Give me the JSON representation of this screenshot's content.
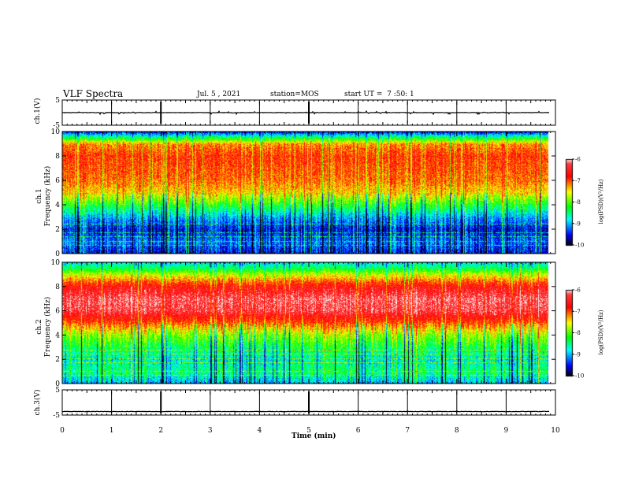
{
  "header": {
    "title": "VLF Spectra",
    "date": "Jul. 5 , 2021",
    "station": "station=MOS",
    "start_ut": "start UT =  7 :50: 1"
  },
  "panels": {
    "ch1_wave_label": "ch.1(V)",
    "ch1_spec_label": "ch.1\nFrequency (kHz)",
    "ch2_spec_label": "ch.2\nFrequency (kHz)",
    "ch3_wave_label": "ch.3(V)",
    "colorbar_label": "log(PSD)(V²/Hz)"
  },
  "chart_data": [
    {
      "type": "line",
      "name_label": "ch.1(V)",
      "ylim": [
        -5,
        5
      ],
      "y_ticks": [
        "5",
        "-5"
      ],
      "level": 0,
      "xlim": [
        0,
        10
      ]
    },
    {
      "type": "heatmap",
      "ylabel": "Frequency (kHz)",
      "channel": "ch.1",
      "ylim": [
        0,
        10
      ],
      "y_ticks": [
        "0",
        "2",
        "4",
        "6",
        "8",
        "10"
      ],
      "xlim": [
        0,
        10
      ],
      "data_end_min": 9.85,
      "colorbar": {
        "range": [
          -10,
          -6
        ],
        "ticks": [
          "-6",
          "-7",
          "-8",
          "-9",
          "-10"
        ],
        "label": "log(PSD)(V²/Hz)"
      },
      "profile_freq_khz": [
        0,
        1,
        2,
        3,
        4,
        5,
        6,
        7,
        8,
        9,
        9.5,
        10
      ],
      "profile_log_psd": [
        -9.5,
        -9.2,
        -9.5,
        -9.0,
        -8.2,
        -7.4,
        -7.1,
        -7.0,
        -6.9,
        -7.2,
        -8.3,
        -9.5
      ]
    },
    {
      "type": "heatmap",
      "ylabel": "Frequency (kHz)",
      "channel": "ch.2",
      "ylim": [
        0,
        10
      ],
      "y_ticks": [
        "0",
        "2",
        "4",
        "6",
        "8",
        "10"
      ],
      "xlim": [
        0,
        10
      ],
      "data_end_min": 9.85,
      "colorbar": {
        "range": [
          -10,
          -6
        ],
        "ticks": [
          "-6",
          "-7",
          "-8",
          "-9",
          "-10"
        ],
        "label": "log(PSD)(V²/Hz)"
      },
      "profile_freq_khz": [
        0,
        1,
        2,
        3,
        4,
        5,
        6,
        7,
        8,
        9,
        9.5,
        10
      ],
      "profile_log_psd": [
        -9.0,
        -8.4,
        -8.7,
        -8.3,
        -7.8,
        -7.0,
        -6.3,
        -6.2,
        -6.6,
        -7.6,
        -8.3,
        -8.8
      ]
    },
    {
      "type": "line",
      "name_label": "ch.3(V)",
      "ylim": [
        -5,
        5
      ],
      "y_ticks": [
        "5",
        "-5"
      ],
      "level": -3.6,
      "xlim": [
        0,
        10
      ]
    }
  ],
  "x_axis": {
    "label": "Time (min)",
    "ticks": [
      "0",
      "1",
      "2",
      "3",
      "4",
      "5",
      "6",
      "7",
      "8",
      "9",
      "10"
    ]
  },
  "colors": {
    "scale": [
      "#000000",
      "#0000ff",
      "#00ffff",
      "#00ff00",
      "#ffff00",
      "#ff0000",
      "#ffe0e0"
    ]
  }
}
